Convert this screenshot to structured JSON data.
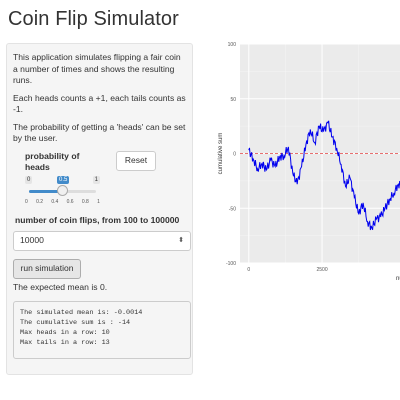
{
  "title": "Coin Flip Simulator",
  "sidebar": {
    "description": "This application simulates flipping a fair coin a number of times and shows the resulting runs.",
    "rule": "Each heads counts a +1, each tails counts as -1.",
    "prob_note": "The probability of getting a 'heads' can be set by the user.",
    "prob_label": "probability of heads",
    "reset_label": "Reset",
    "slider": {
      "min": "0",
      "max": "1",
      "value": "0.5",
      "value_fraction": 0.5,
      "ticks": [
        "0",
        "0.2",
        "0.4",
        "0.6",
        "0.8",
        "1"
      ]
    },
    "flips_label": "number of coin flips, from 100 to 100000",
    "flips_value": "10000",
    "run_label": "run simulation",
    "expected_mean": "The expected mean is 0."
  },
  "output": {
    "line1": "The simulated mean is: -0.0014",
    "line2": "The cumulative sum is : -14",
    "line3": "Max heads in a row: 10",
    "line4": "Max tails in a row: 13"
  },
  "colors": {
    "series": "#0000ee",
    "reference_line": "#e04040",
    "panel": "#ebebeb"
  },
  "chart_data": {
    "type": "line",
    "ylabel": "cumulative sum",
    "xlabel": "num",
    "ylim": [
      -100,
      100
    ],
    "xlim": [
      -300,
      5500
    ],
    "y_ticks": [
      "100",
      "50",
      "0",
      "-50",
      "-100"
    ],
    "x_ticks": [
      "0",
      "2500"
    ],
    "reference_line": 0,
    "series": [
      {
        "x": [
          0,
          150,
          300,
          450,
          600,
          750,
          900,
          1050,
          1200,
          1350,
          1500,
          1650,
          1800,
          1950,
          2100,
          2250,
          2400,
          2550,
          2700,
          2850,
          3000,
          3150,
          3300,
          3450,
          3600,
          3750,
          3900,
          4050,
          4200,
          4350,
          4500,
          4650,
          4800,
          4950,
          5100,
          5250,
          5400
        ],
        "y": [
          3,
          -5,
          -14,
          -9,
          -15,
          -6,
          -12,
          -3,
          -2,
          6,
          -18,
          -28,
          -12,
          8,
          22,
          10,
          25,
          20,
          28,
          15,
          5,
          -10,
          -30,
          -22,
          -40,
          -55,
          -45,
          -62,
          -68,
          -60,
          -58,
          -50,
          -42,
          -36,
          -28,
          -30,
          -50
        ]
      }
    ]
  }
}
